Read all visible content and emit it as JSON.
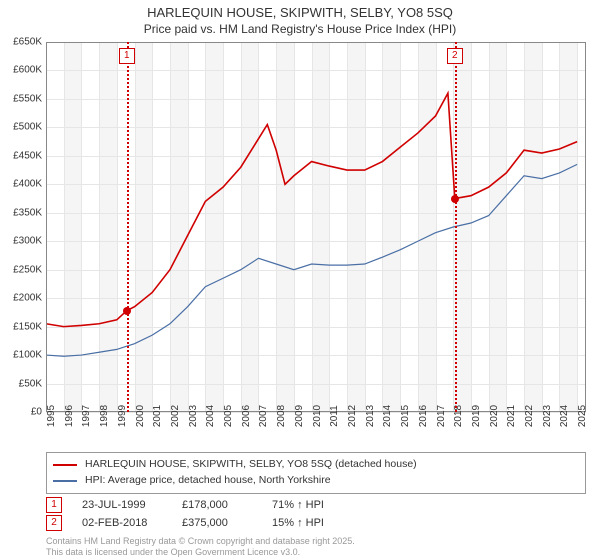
{
  "title": "HARLEQUIN HOUSE, SKIPWITH, SELBY, YO8 5SQ",
  "subtitle": "Price paid vs. HM Land Registry's House Price Index (HPI)",
  "chart": {
    "type": "line",
    "xlim": [
      1995,
      2025.5
    ],
    "ylim": [
      0,
      650000
    ],
    "ytick_step": 50000,
    "ytick_labels": [
      "£0",
      "£50K",
      "£100K",
      "£150K",
      "£200K",
      "£250K",
      "£300K",
      "£350K",
      "£400K",
      "£450K",
      "£500K",
      "£550K",
      "£600K",
      "£650K"
    ],
    "xtick_step": 1,
    "xtick_labels": [
      "1995",
      "1996",
      "1997",
      "1998",
      "1999",
      "2000",
      "2001",
      "2002",
      "2003",
      "2004",
      "2005",
      "2006",
      "2007",
      "2008",
      "2009",
      "2010",
      "2011",
      "2012",
      "2013",
      "2014",
      "2015",
      "2016",
      "2017",
      "2018",
      "2019",
      "2020",
      "2021",
      "2022",
      "2023",
      "2024",
      "2025"
    ],
    "background_color": "#ffffff",
    "shade_color": "#f5f5f5",
    "grid_color": "#e6e6e6",
    "series": [
      {
        "name": "property",
        "label": "HARLEQUIN HOUSE, SKIPWITH, SELBY, YO8 5SQ (detached house)",
        "color": "#d00000",
        "width": 1.6,
        "data": [
          [
            1995,
            155000
          ],
          [
            1996,
            150000
          ],
          [
            1997,
            152000
          ],
          [
            1998,
            155000
          ],
          [
            1999,
            162000
          ],
          [
            1999.56,
            178000
          ],
          [
            2000,
            185000
          ],
          [
            2001,
            210000
          ],
          [
            2002,
            250000
          ],
          [
            2003,
            310000
          ],
          [
            2004,
            370000
          ],
          [
            2005,
            395000
          ],
          [
            2006,
            430000
          ],
          [
            2007,
            480000
          ],
          [
            2007.5,
            505000
          ],
          [
            2008,
            460000
          ],
          [
            2008.5,
            400000
          ],
          [
            2009,
            415000
          ],
          [
            2010,
            440000
          ],
          [
            2011,
            432000
          ],
          [
            2012,
            425000
          ],
          [
            2013,
            425000
          ],
          [
            2014,
            440000
          ],
          [
            2015,
            465000
          ],
          [
            2016,
            490000
          ],
          [
            2017,
            520000
          ],
          [
            2017.7,
            560000
          ],
          [
            2018.09,
            375000
          ],
          [
            2019,
            380000
          ],
          [
            2020,
            395000
          ],
          [
            2021,
            420000
          ],
          [
            2022,
            460000
          ],
          [
            2023,
            455000
          ],
          [
            2024,
            462000
          ],
          [
            2025,
            475000
          ]
        ]
      },
      {
        "name": "hpi",
        "label": "HPI: Average price, detached house, North Yorkshire",
        "color": "#4a6fa5",
        "width": 1.2,
        "data": [
          [
            1995,
            100000
          ],
          [
            1996,
            98000
          ],
          [
            1997,
            100000
          ],
          [
            1998,
            105000
          ],
          [
            1999,
            110000
          ],
          [
            2000,
            120000
          ],
          [
            2001,
            135000
          ],
          [
            2002,
            155000
          ],
          [
            2003,
            185000
          ],
          [
            2004,
            220000
          ],
          [
            2005,
            235000
          ],
          [
            2006,
            250000
          ],
          [
            2007,
            270000
          ],
          [
            2008,
            260000
          ],
          [
            2009,
            250000
          ],
          [
            2010,
            260000
          ],
          [
            2011,
            258000
          ],
          [
            2012,
            258000
          ],
          [
            2013,
            260000
          ],
          [
            2014,
            272000
          ],
          [
            2015,
            285000
          ],
          [
            2016,
            300000
          ],
          [
            2017,
            315000
          ],
          [
            2018,
            325000
          ],
          [
            2019,
            332000
          ],
          [
            2020,
            345000
          ],
          [
            2021,
            380000
          ],
          [
            2022,
            415000
          ],
          [
            2023,
            410000
          ],
          [
            2024,
            420000
          ],
          [
            2025,
            435000
          ]
        ]
      }
    ],
    "sale_markers": [
      {
        "n": "1",
        "x": 1999.56,
        "y": 178000,
        "date": "23-JUL-1999",
        "price": "£178,000",
        "vs_hpi": "71% ↑ HPI"
      },
      {
        "n": "2",
        "x": 2018.09,
        "y": 375000,
        "date": "02-FEB-2018",
        "price": "£375,000",
        "vs_hpi": "15% ↑ HPI"
      }
    ]
  },
  "footer_line1": "Contains HM Land Registry data © Crown copyright and database right 2025.",
  "footer_line2": "This data is licensed under the Open Government Licence v3.0."
}
